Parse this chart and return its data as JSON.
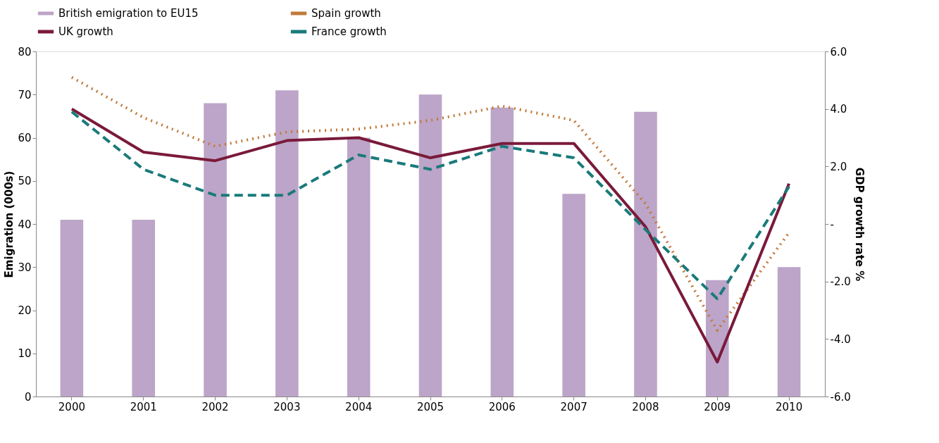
{
  "chart_data": {
    "type": "bar",
    "categories": [
      "2000",
      "2001",
      "2002",
      "2003",
      "2004",
      "2005",
      "2006",
      "2007",
      "2008",
      "2009",
      "2010"
    ],
    "ylabel": "Emigration (000s)",
    "y2label": "GDP growth rate %",
    "ylim": [
      0,
      80
    ],
    "yticks": [
      0,
      10,
      20,
      30,
      40,
      50,
      60,
      70,
      80
    ],
    "y2lim": [
      -6,
      6
    ],
    "y2ticks": [
      {
        "value": -6,
        "label": "-6.0"
      },
      {
        "value": -4,
        "label": "-4.0"
      },
      {
        "value": -2,
        "label": "-2.0"
      },
      {
        "value": 0,
        "label": "-"
      },
      {
        "value": 2,
        "label": "2.0"
      },
      {
        "value": 4,
        "label": "4.0"
      },
      {
        "value": 6,
        "label": "6.0"
      }
    ],
    "grid": false,
    "legend": "top",
    "series": [
      {
        "name": "British emigration to EU15",
        "color": "#bca5c8",
        "values": [
          41,
          41,
          68,
          71,
          60,
          70,
          67,
          47,
          66,
          27,
          30
        ]
      },
      {
        "name": "Spain growth",
        "type": "line",
        "axis": "y2",
        "line_style": "dotted",
        "color": "#c07a3a",
        "values": [
          5.1,
          3.7,
          2.7,
          3.2,
          3.3,
          3.6,
          4.1,
          3.6,
          0.7,
          -3.7,
          -0.3
        ]
      },
      {
        "name": "UK growth",
        "type": "line",
        "axis": "y2",
        "line_style": "solid",
        "color": "#7a1a3a",
        "values": [
          4.0,
          2.5,
          2.2,
          2.9,
          3.0,
          2.3,
          2.8,
          2.8,
          -0.1,
          -4.8,
          1.4
        ]
      },
      {
        "name": "France growth",
        "type": "line",
        "axis": "y2",
        "line_style": "dashed",
        "color": "#1a7a7a",
        "values": [
          3.9,
          1.9,
          1.0,
          1.0,
          2.4,
          1.9,
          2.7,
          2.3,
          -0.2,
          -2.6,
          1.3
        ]
      }
    ]
  }
}
